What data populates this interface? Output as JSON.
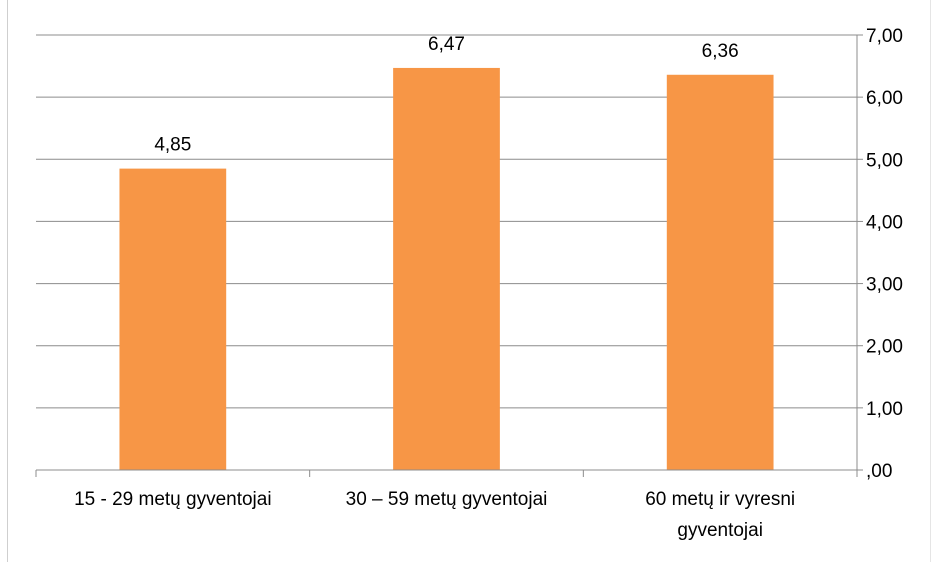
{
  "chart_data": {
    "type": "bar",
    "categories": [
      [
        "15 - 29 metų gyventojai"
      ],
      [
        "30 – 59 metų gyventojai"
      ],
      [
        "60 metų ir vyresni",
        "gyventojai"
      ]
    ],
    "values": [
      4.85,
      6.47,
      6.36
    ],
    "value_labels": [
      "4,85",
      "6,47",
      "6,36"
    ],
    "y_axis": {
      "position": "right",
      "ticks": [
        0,
        1,
        2,
        3,
        4,
        5,
        6,
        7
      ],
      "tick_labels": [
        ",00",
        "1,00",
        "2,00",
        "3,00",
        "4,00",
        "5,00",
        "6,00",
        "7,00"
      ]
    },
    "ylim": [
      0,
      7
    ],
    "grid": true,
    "legend": "none",
    "colors": {
      "bar": "#f79646",
      "grid": "#8c8c8c",
      "axis": "#8c8c8c"
    }
  }
}
